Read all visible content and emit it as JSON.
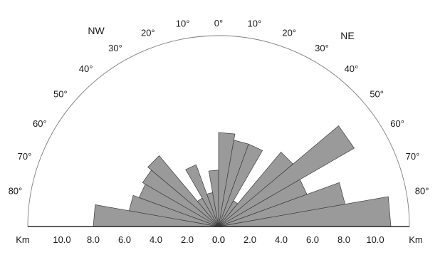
{
  "chart_data": {
    "type": "rose",
    "directions": [
      "NW",
      "NE"
    ],
    "angle_labels_left": [
      "80°",
      "70°",
      "60°",
      "50°",
      "40°",
      "30°",
      "20°",
      "10°"
    ],
    "angle_labels_center": "0°",
    "angle_labels_right": [
      "10°",
      "20°",
      "30°",
      "40°",
      "50°",
      "60°",
      "70°",
      "80°"
    ],
    "angle_values_left": [
      80,
      70,
      60,
      50,
      40,
      30,
      20,
      10
    ],
    "angle_values_right": [
      10,
      20,
      30,
      40,
      50,
      60,
      70,
      80
    ],
    "unit_left": "Km",
    "unit_right": "Km",
    "axis_tick_labels_left": [
      "10.0",
      "8.0",
      "6.0",
      "4.0",
      "2.0",
      "0.0"
    ],
    "axis_tick_labels_right": [
      "0.0",
      "2.0",
      "4.0",
      "6.0",
      "8.0",
      "10.0"
    ],
    "axis_tick_values_left": [
      10,
      8,
      6,
      4,
      2,
      0
    ],
    "axis_tick_values_right": [
      0,
      2,
      4,
      6,
      8,
      10
    ],
    "radial_max": 11.2,
    "bin_width_deg": 10,
    "bins": [
      {
        "from": -90,
        "to": -80,
        "value": 8.0
      },
      {
        "from": -80,
        "to": -70,
        "value": 5.8
      },
      {
        "from": -70,
        "to": -60,
        "value": 5.4
      },
      {
        "from": -60,
        "to": -50,
        "value": 5.6
      },
      {
        "from": -50,
        "to": -40,
        "value": 5.9
      },
      {
        "from": -40,
        "to": -30,
        "value": 2.1
      },
      {
        "from": -30,
        "to": -20,
        "value": 4.2
      },
      {
        "from": -20,
        "to": -10,
        "value": 2.2
      },
      {
        "from": -10,
        "to": 0,
        "value": 3.6
      },
      {
        "from": 0,
        "to": 10,
        "value": 6.0
      },
      {
        "from": 10,
        "to": 20,
        "value": 5.6
      },
      {
        "from": 20,
        "to": 30,
        "value": 5.6
      },
      {
        "from": 30,
        "to": 40,
        "value": 1.9
      },
      {
        "from": 40,
        "to": 50,
        "value": 6.2
      },
      {
        "from": 50,
        "to": 60,
        "value": 10.0
      },
      {
        "from": 60,
        "to": 70,
        "value": 6.0
      },
      {
        "from": 70,
        "to": 80,
        "value": 8.2
      },
      {
        "from": 80,
        "to": 90,
        "value": 11.0
      }
    ],
    "colors": {
      "bar_fill": "#9a9a9a",
      "bar_stroke": "#3c3c3c",
      "outline": "#808080",
      "axis": "#000000"
    }
  }
}
